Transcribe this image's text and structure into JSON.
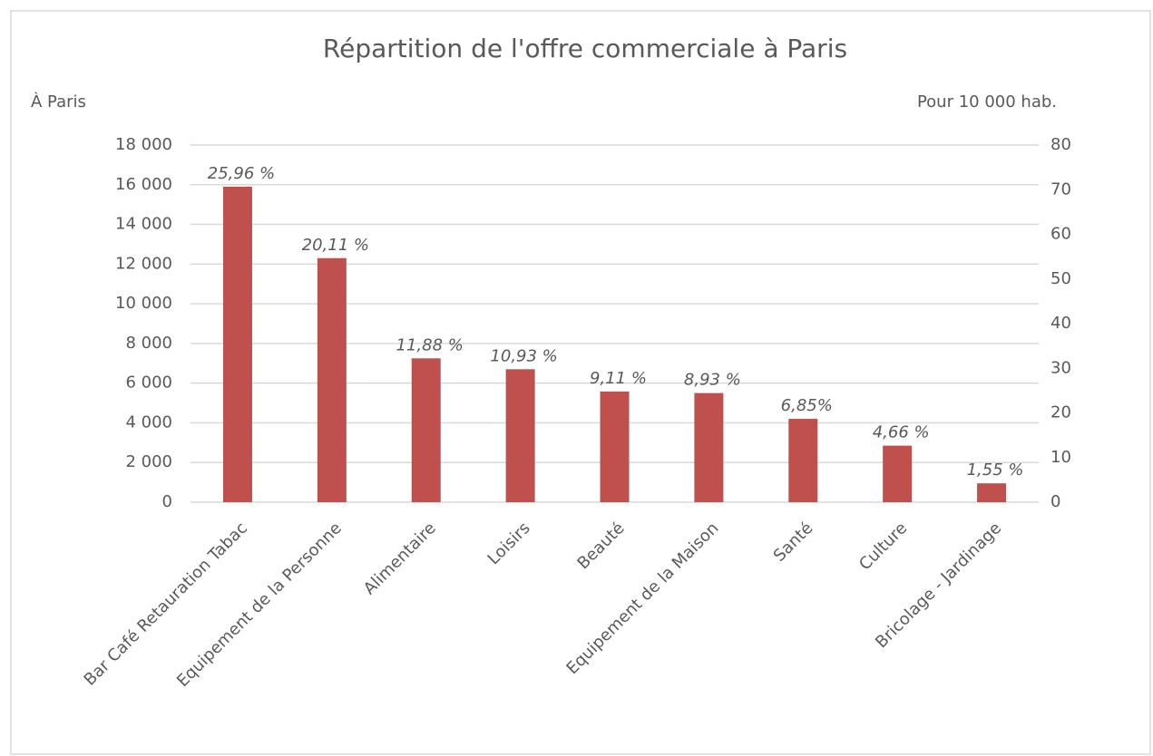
{
  "chart_data": {
    "type": "bar",
    "title": "Répartition de l'offre commerciale à Paris",
    "y_label": "À Paris",
    "y2_label": "Pour 10 000 hab.",
    "categories": [
      "Bar Café Retauration Tabac",
      "Equipement de la Personne",
      "Alimentaire",
      "Loisirs",
      "Beauté",
      "Equipement de la Maison",
      "Santé",
      "Culture",
      "Bricolage - Jardinage"
    ],
    "values": [
      15900,
      12300,
      7250,
      6700,
      5580,
      5500,
      4200,
      2850,
      950
    ],
    "data_labels": [
      "25,96 %",
      "20,11 %",
      "11,88 %",
      "10,93 %",
      "9,11 %",
      "8,93 %",
      "6,85%",
      "4,66 %",
      "1,55 %"
    ],
    "color": "#c0504d",
    "ylim": [
      0,
      18000
    ],
    "yticks": [
      0,
      {
        "value": 2000,
        "label": "2 000"
      },
      {
        "value": 4000,
        "label": "4 000"
      },
      {
        "value": 6000,
        "label": "6 000"
      },
      {
        "value": 8000,
        "label": "8 000"
      },
      {
        "value": 10000,
        "label": "10 000"
      },
      {
        "value": 12000,
        "label": "12 000"
      },
      {
        "value": 14000,
        "label": "14 000"
      },
      {
        "value": 16000,
        "label": "16 000"
      },
      {
        "value": 18000,
        "label": "18 000"
      }
    ],
    "y2lim": [
      0,
      80
    ],
    "y2ticks": [
      0,
      10,
      20,
      30,
      40,
      50,
      60,
      70,
      80
    ],
    "grid": true
  }
}
